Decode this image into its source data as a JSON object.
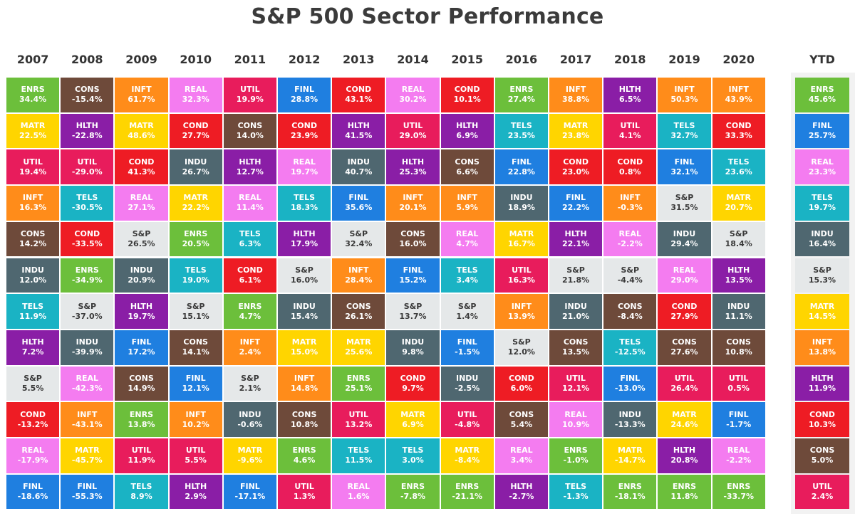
{
  "title": "S&P 500 Sector Performance",
  "colors": {
    "ENRS": "#6cbf3b",
    "CONS": "#6e4a3a",
    "INFT": "#ff8c1a",
    "REAL": "#f47cf0",
    "UTIL": "#e81c5c",
    "FINL": "#1f7fe0",
    "COND": "#ee1c24",
    "HLTH": "#8a1ea6",
    "MATR": "#ffd500",
    "INDU": "#4f6770",
    "TELS": "#1ab3c4",
    "S&P": "#e5e8e9"
  },
  "chart_data": {
    "type": "table",
    "title": "S&P 500 Sector Performance",
    "columns": [
      "2007",
      "2008",
      "2009",
      "2010",
      "2011",
      "2012",
      "2013",
      "2014",
      "2015",
      "2016",
      "2017",
      "2018",
      "2019",
      "2020",
      "YTD"
    ],
    "cells": [
      [
        [
          "ENRS",
          "34.4%"
        ],
        [
          "MATR",
          "22.5%"
        ],
        [
          "UTIL",
          "19.4%"
        ],
        [
          "INFT",
          "16.3%"
        ],
        [
          "CONS",
          "14.2%"
        ],
        [
          "INDU",
          "12.0%"
        ],
        [
          "TELS",
          "11.9%"
        ],
        [
          "HLTH",
          "7.2%"
        ],
        [
          "S&P",
          "5.5%"
        ],
        [
          "COND",
          "-13.2%"
        ],
        [
          "REAL",
          "-17.9%"
        ],
        [
          "FINL",
          "-18.6%"
        ]
      ],
      [
        [
          "CONS",
          "-15.4%"
        ],
        [
          "HLTH",
          "-22.8%"
        ],
        [
          "UTIL",
          "-29.0%"
        ],
        [
          "TELS",
          "-30.5%"
        ],
        [
          "COND",
          "-33.5%"
        ],
        [
          "ENRS",
          "-34.9%"
        ],
        [
          "S&P",
          "-37.0%"
        ],
        [
          "INDU",
          "-39.9%"
        ],
        [
          "REAL",
          "-42.3%"
        ],
        [
          "INFT",
          "-43.1%"
        ],
        [
          "MATR",
          "-45.7%"
        ],
        [
          "FINL",
          "-55.3%"
        ]
      ],
      [
        [
          "INFT",
          "61.7%"
        ],
        [
          "MATR",
          "48.6%"
        ],
        [
          "COND",
          "41.3%"
        ],
        [
          "REAL",
          "27.1%"
        ],
        [
          "S&P",
          "26.5%"
        ],
        [
          "INDU",
          "20.9%"
        ],
        [
          "HLTH",
          "19.7%"
        ],
        [
          "FINL",
          "17.2%"
        ],
        [
          "CONS",
          "14.9%"
        ],
        [
          "ENRS",
          "13.8%"
        ],
        [
          "UTIL",
          "11.9%"
        ],
        [
          "TELS",
          "8.9%"
        ]
      ],
      [
        [
          "REAL",
          "32.3%"
        ],
        [
          "COND",
          "27.7%"
        ],
        [
          "INDU",
          "26.7%"
        ],
        [
          "MATR",
          "22.2%"
        ],
        [
          "ENRS",
          "20.5%"
        ],
        [
          "TELS",
          "19.0%"
        ],
        [
          "S&P",
          "15.1%"
        ],
        [
          "CONS",
          "14.1%"
        ],
        [
          "FINL",
          "12.1%"
        ],
        [
          "INFT",
          "10.2%"
        ],
        [
          "UTIL",
          "5.5%"
        ],
        [
          "HLTH",
          "2.9%"
        ]
      ],
      [
        [
          "UTIL",
          "19.9%"
        ],
        [
          "CONS",
          "14.0%"
        ],
        [
          "HLTH",
          "12.7%"
        ],
        [
          "REAL",
          "11.4%"
        ],
        [
          "TELS",
          "6.3%"
        ],
        [
          "COND",
          "6.1%"
        ],
        [
          "ENRS",
          "4.7%"
        ],
        [
          "INFT",
          "2.4%"
        ],
        [
          "S&P",
          "2.1%"
        ],
        [
          "INDU",
          "-0.6%"
        ],
        [
          "MATR",
          "-9.6%"
        ],
        [
          "FINL",
          "-17.1%"
        ]
      ],
      [
        [
          "FINL",
          "28.8%"
        ],
        [
          "COND",
          "23.9%"
        ],
        [
          "REAL",
          "19.7%"
        ],
        [
          "TELS",
          "18.3%"
        ],
        [
          "HLTH",
          "17.9%"
        ],
        [
          "S&P",
          "16.0%"
        ],
        [
          "INDU",
          "15.4%"
        ],
        [
          "MATR",
          "15.0%"
        ],
        [
          "INFT",
          "14.8%"
        ],
        [
          "CONS",
          "10.8%"
        ],
        [
          "ENRS",
          "4.6%"
        ],
        [
          "UTIL",
          "1.3%"
        ]
      ],
      [
        [
          "COND",
          "43.1%"
        ],
        [
          "HLTH",
          "41.5%"
        ],
        [
          "INDU",
          "40.7%"
        ],
        [
          "FINL",
          "35.6%"
        ],
        [
          "S&P",
          "32.4%"
        ],
        [
          "INFT",
          "28.4%"
        ],
        [
          "CONS",
          "26.1%"
        ],
        [
          "MATR",
          "25.6%"
        ],
        [
          "ENRS",
          "25.1%"
        ],
        [
          "UTIL",
          "13.2%"
        ],
        [
          "TELS",
          "11.5%"
        ],
        [
          "REAL",
          "1.6%"
        ]
      ],
      [
        [
          "REAL",
          "30.2%"
        ],
        [
          "UTIL",
          "29.0%"
        ],
        [
          "HLTH",
          "25.3%"
        ],
        [
          "INFT",
          "20.1%"
        ],
        [
          "CONS",
          "16.0%"
        ],
        [
          "FINL",
          "15.2%"
        ],
        [
          "S&P",
          "13.7%"
        ],
        [
          "INDU",
          "9.8%"
        ],
        [
          "COND",
          "9.7%"
        ],
        [
          "MATR",
          "6.9%"
        ],
        [
          "TELS",
          "3.0%"
        ],
        [
          "ENRS",
          "-7.8%"
        ]
      ],
      [
        [
          "COND",
          "10.1%"
        ],
        [
          "HLTH",
          "6.9%"
        ],
        [
          "CONS",
          "6.6%"
        ],
        [
          "INFT",
          "5.9%"
        ],
        [
          "REAL",
          "4.7%"
        ],
        [
          "TELS",
          "3.4%"
        ],
        [
          "S&P",
          "1.4%"
        ],
        [
          "FINL",
          "-1.5%"
        ],
        [
          "INDU",
          "-2.5%"
        ],
        [
          "UTIL",
          "-4.8%"
        ],
        [
          "MATR",
          "-8.4%"
        ],
        [
          "ENRS",
          "-21.1%"
        ]
      ],
      [
        [
          "ENRS",
          "27.4%"
        ],
        [
          "TELS",
          "23.5%"
        ],
        [
          "FINL",
          "22.8%"
        ],
        [
          "INDU",
          "18.9%"
        ],
        [
          "MATR",
          "16.7%"
        ],
        [
          "UTIL",
          "16.3%"
        ],
        [
          "INFT",
          "13.9%"
        ],
        [
          "S&P",
          "12.0%"
        ],
        [
          "COND",
          "6.0%"
        ],
        [
          "CONS",
          "5.4%"
        ],
        [
          "REAL",
          "3.4%"
        ],
        [
          "HLTH",
          "-2.7%"
        ]
      ],
      [
        [
          "INFT",
          "38.8%"
        ],
        [
          "MATR",
          "23.8%"
        ],
        [
          "COND",
          "23.0%"
        ],
        [
          "FINL",
          "22.2%"
        ],
        [
          "HLTH",
          "22.1%"
        ],
        [
          "S&P",
          "21.8%"
        ],
        [
          "INDU",
          "21.0%"
        ],
        [
          "CONS",
          "13.5%"
        ],
        [
          "UTIL",
          "12.1%"
        ],
        [
          "REAL",
          "10.9%"
        ],
        [
          "ENRS",
          "-1.0%"
        ],
        [
          "TELS",
          "-1.3%"
        ]
      ],
      [
        [
          "HLTH",
          "6.5%"
        ],
        [
          "UTIL",
          "4.1%"
        ],
        [
          "COND",
          "0.8%"
        ],
        [
          "INFT",
          "-0.3%"
        ],
        [
          "REAL",
          "-2.2%"
        ],
        [
          "S&P",
          "-4.4%"
        ],
        [
          "CONS",
          "-8.4%"
        ],
        [
          "TELS",
          "-12.5%"
        ],
        [
          "FINL",
          "-13.0%"
        ],
        [
          "INDU",
          "-13.3%"
        ],
        [
          "MATR",
          "-14.7%"
        ],
        [
          "ENRS",
          "-18.1%"
        ]
      ],
      [
        [
          "INFT",
          "50.3%"
        ],
        [
          "TELS",
          "32.7%"
        ],
        [
          "FINL",
          "32.1%"
        ],
        [
          "S&P",
          "31.5%"
        ],
        [
          "INDU",
          "29.4%"
        ],
        [
          "REAL",
          "29.0%"
        ],
        [
          "COND",
          "27.9%"
        ],
        [
          "CONS",
          "27.6%"
        ],
        [
          "UTIL",
          "26.4%"
        ],
        [
          "MATR",
          "24.6%"
        ],
        [
          "HLTH",
          "20.8%"
        ],
        [
          "ENRS",
          "11.8%"
        ]
      ],
      [
        [
          "INFT",
          "43.9%"
        ],
        [
          "COND",
          "33.3%"
        ],
        [
          "TELS",
          "23.6%"
        ],
        [
          "MATR",
          "20.7%"
        ],
        [
          "S&P",
          "18.4%"
        ],
        [
          "HLTH",
          "13.5%"
        ],
        [
          "INDU",
          "11.1%"
        ],
        [
          "CONS",
          "10.8%"
        ],
        [
          "UTIL",
          "0.5%"
        ],
        [
          "FINL",
          "-1.7%"
        ],
        [
          "REAL",
          "-2.2%"
        ],
        [
          "ENRS",
          "-33.7%"
        ]
      ],
      [
        [
          "ENRS",
          "45.6%"
        ],
        [
          "FINL",
          "25.7%"
        ],
        [
          "REAL",
          "23.3%"
        ],
        [
          "TELS",
          "19.7%"
        ],
        [
          "INDU",
          "16.4%"
        ],
        [
          "S&P",
          "15.3%"
        ],
        [
          "MATR",
          "14.5%"
        ],
        [
          "INFT",
          "13.8%"
        ],
        [
          "HLTH",
          "11.9%"
        ],
        [
          "COND",
          "10.3%"
        ],
        [
          "CONS",
          "5.0%"
        ],
        [
          "UTIL",
          "2.4%"
        ]
      ]
    ]
  }
}
